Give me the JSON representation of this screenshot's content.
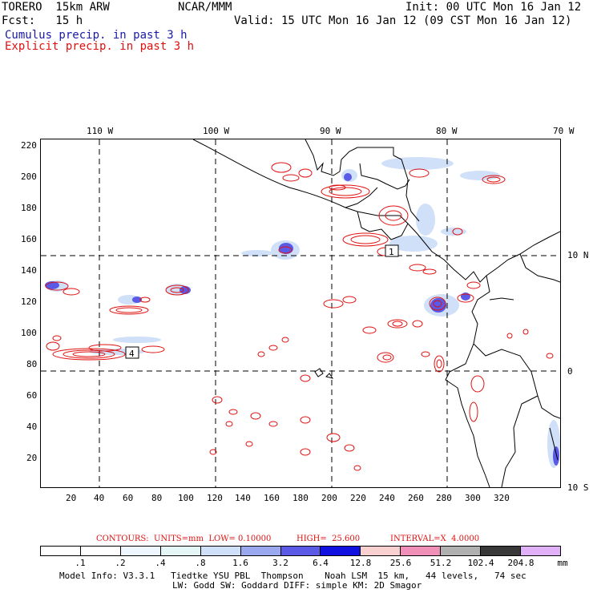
{
  "header": {
    "model": "TORERO  15km ARW",
    "center": "NCAR/MMM",
    "init": "Init: 00 UTC Mon 16 Jan 12",
    "fcst": "Fcst:   15 h",
    "valid": "Valid: 15 UTC Mon 16 Jan 12 (09 CST Mon 16 Jan 12)",
    "cumulus_label": "Cumulus precip. in past 3 h",
    "explicit_label": "Explicit precip. in past 3 h",
    "cumulus_color": "#1a1aa6",
    "explicit_color": "#e01010"
  },
  "map": {
    "lon_labels": [
      "110 W",
      "100 W",
      "90 W",
      "80 W",
      "70 W"
    ],
    "lat_labels": [
      "10 N",
      "0",
      "10 S"
    ],
    "y_ticks": [
      "220",
      "200",
      "180",
      "160",
      "140",
      "120",
      "100",
      "80",
      "60",
      "40",
      "20"
    ],
    "x_ticks": [
      "20",
      "40",
      "60",
      "80",
      "100",
      "120",
      "140",
      "160",
      "180",
      "200",
      "220",
      "240",
      "260",
      "280",
      "300",
      "320"
    ],
    "box_labels": [
      "1",
      "4"
    ]
  },
  "contours": {
    "units": "CONTOURS:  UNITS=mm  LOW= 0.10000",
    "high": "HIGH=  25.600",
    "interval": "INTERVAL=X  4.0000"
  },
  "legend": {
    "levels": [
      ".1",
      ".2",
      ".4",
      ".8",
      "1.6",
      "3.2",
      "6.4",
      "12.8",
      "25.6",
      "51.2",
      "102.4",
      "204.8"
    ],
    "unit": "mm",
    "colors": [
      "#ffffff",
      "#ffffff",
      "#eef6ff",
      "#e4f6f6",
      "#cfe0f8",
      "#9aa8f0",
      "#5a5ae6",
      "#1010e0",
      "#f8d0d0",
      "#f090b8",
      "#b0b0b0",
      "#383838",
      "#e0b0f8"
    ]
  },
  "footer": {
    "line1": "Model Info: V3.3.1   Tiedtke YSU PBL  Thompson    Noah LSM  15 km,   44 levels,   74 sec",
    "line2": "LW: Godd SW: Goddard DIFF: simple KM: 2D Smagor"
  }
}
